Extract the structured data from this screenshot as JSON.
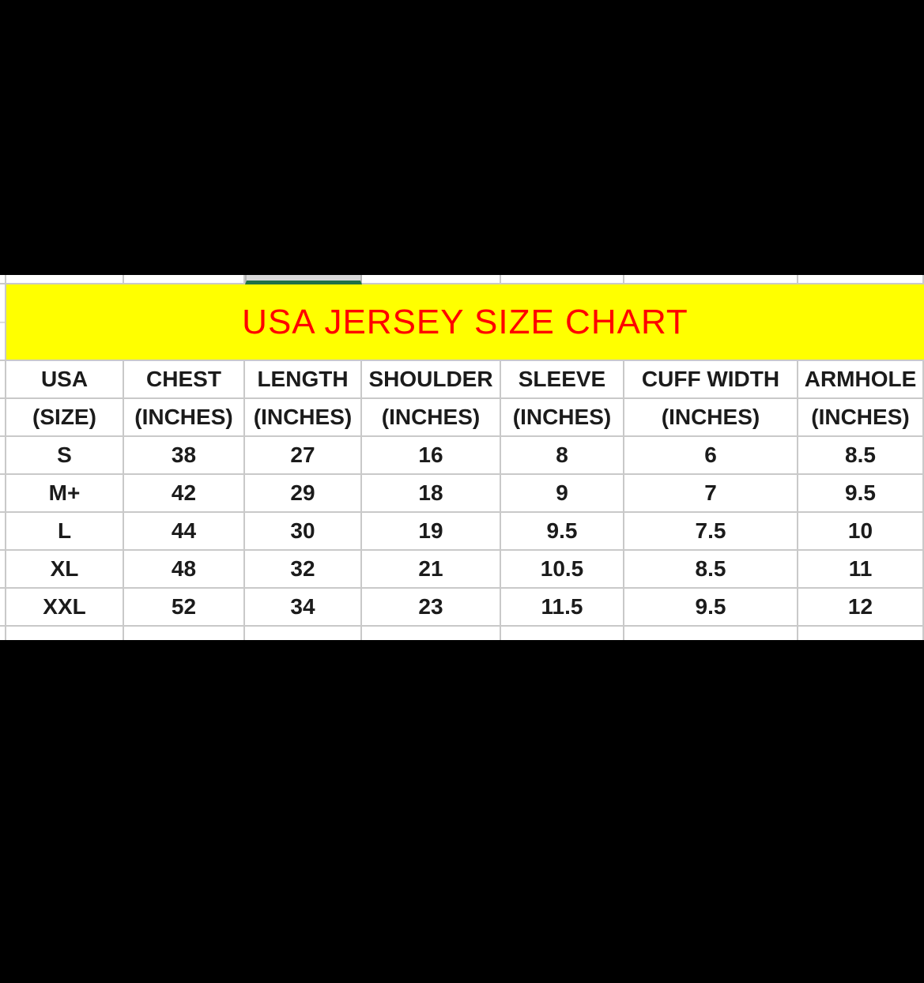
{
  "colors": {
    "background": "#000000",
    "cell_background": "#ffffff",
    "gridline": "#c9c9c9",
    "text": "#1b1b1b",
    "banner_background": "#ffff00",
    "title_color": "#ff0000",
    "active_cell_fill": "#d9d9d9",
    "active_cell_underline": "#217346"
  },
  "banner": {
    "title": "USA JERSEY SIZE CHART"
  },
  "table": {
    "columns": [
      {
        "line1": "USA",
        "line2": "(SIZE)"
      },
      {
        "line1": "CHEST",
        "line2": "(INCHES)"
      },
      {
        "line1": "LENGTH",
        "line2": "(INCHES)"
      },
      {
        "line1": "SHOULDER",
        "line2": "(INCHES)"
      },
      {
        "line1": "SLEEVE",
        "line2": "(INCHES)"
      },
      {
        "line1": "CUFF WIDTH",
        "line2": "(INCHES)"
      },
      {
        "line1": "ARMHOLE",
        "line2": "(INCHES)"
      }
    ],
    "rows": [
      {
        "size": "S",
        "values": [
          "38",
          "27",
          "16",
          "8",
          "6",
          "8.5"
        ]
      },
      {
        "size": "M+",
        "values": [
          "42",
          "29",
          "18",
          "9",
          "7",
          "9.5"
        ]
      },
      {
        "size": "L",
        "values": [
          "44",
          "30",
          "19",
          "9.5",
          "7.5",
          "10"
        ]
      },
      {
        "size": "XL",
        "values": [
          "48",
          "32",
          "21",
          "10.5",
          "8.5",
          "11"
        ]
      },
      {
        "size": "XXL",
        "values": [
          "52",
          "34",
          "23",
          "11.5",
          "9.5",
          "12"
        ]
      }
    ]
  }
}
